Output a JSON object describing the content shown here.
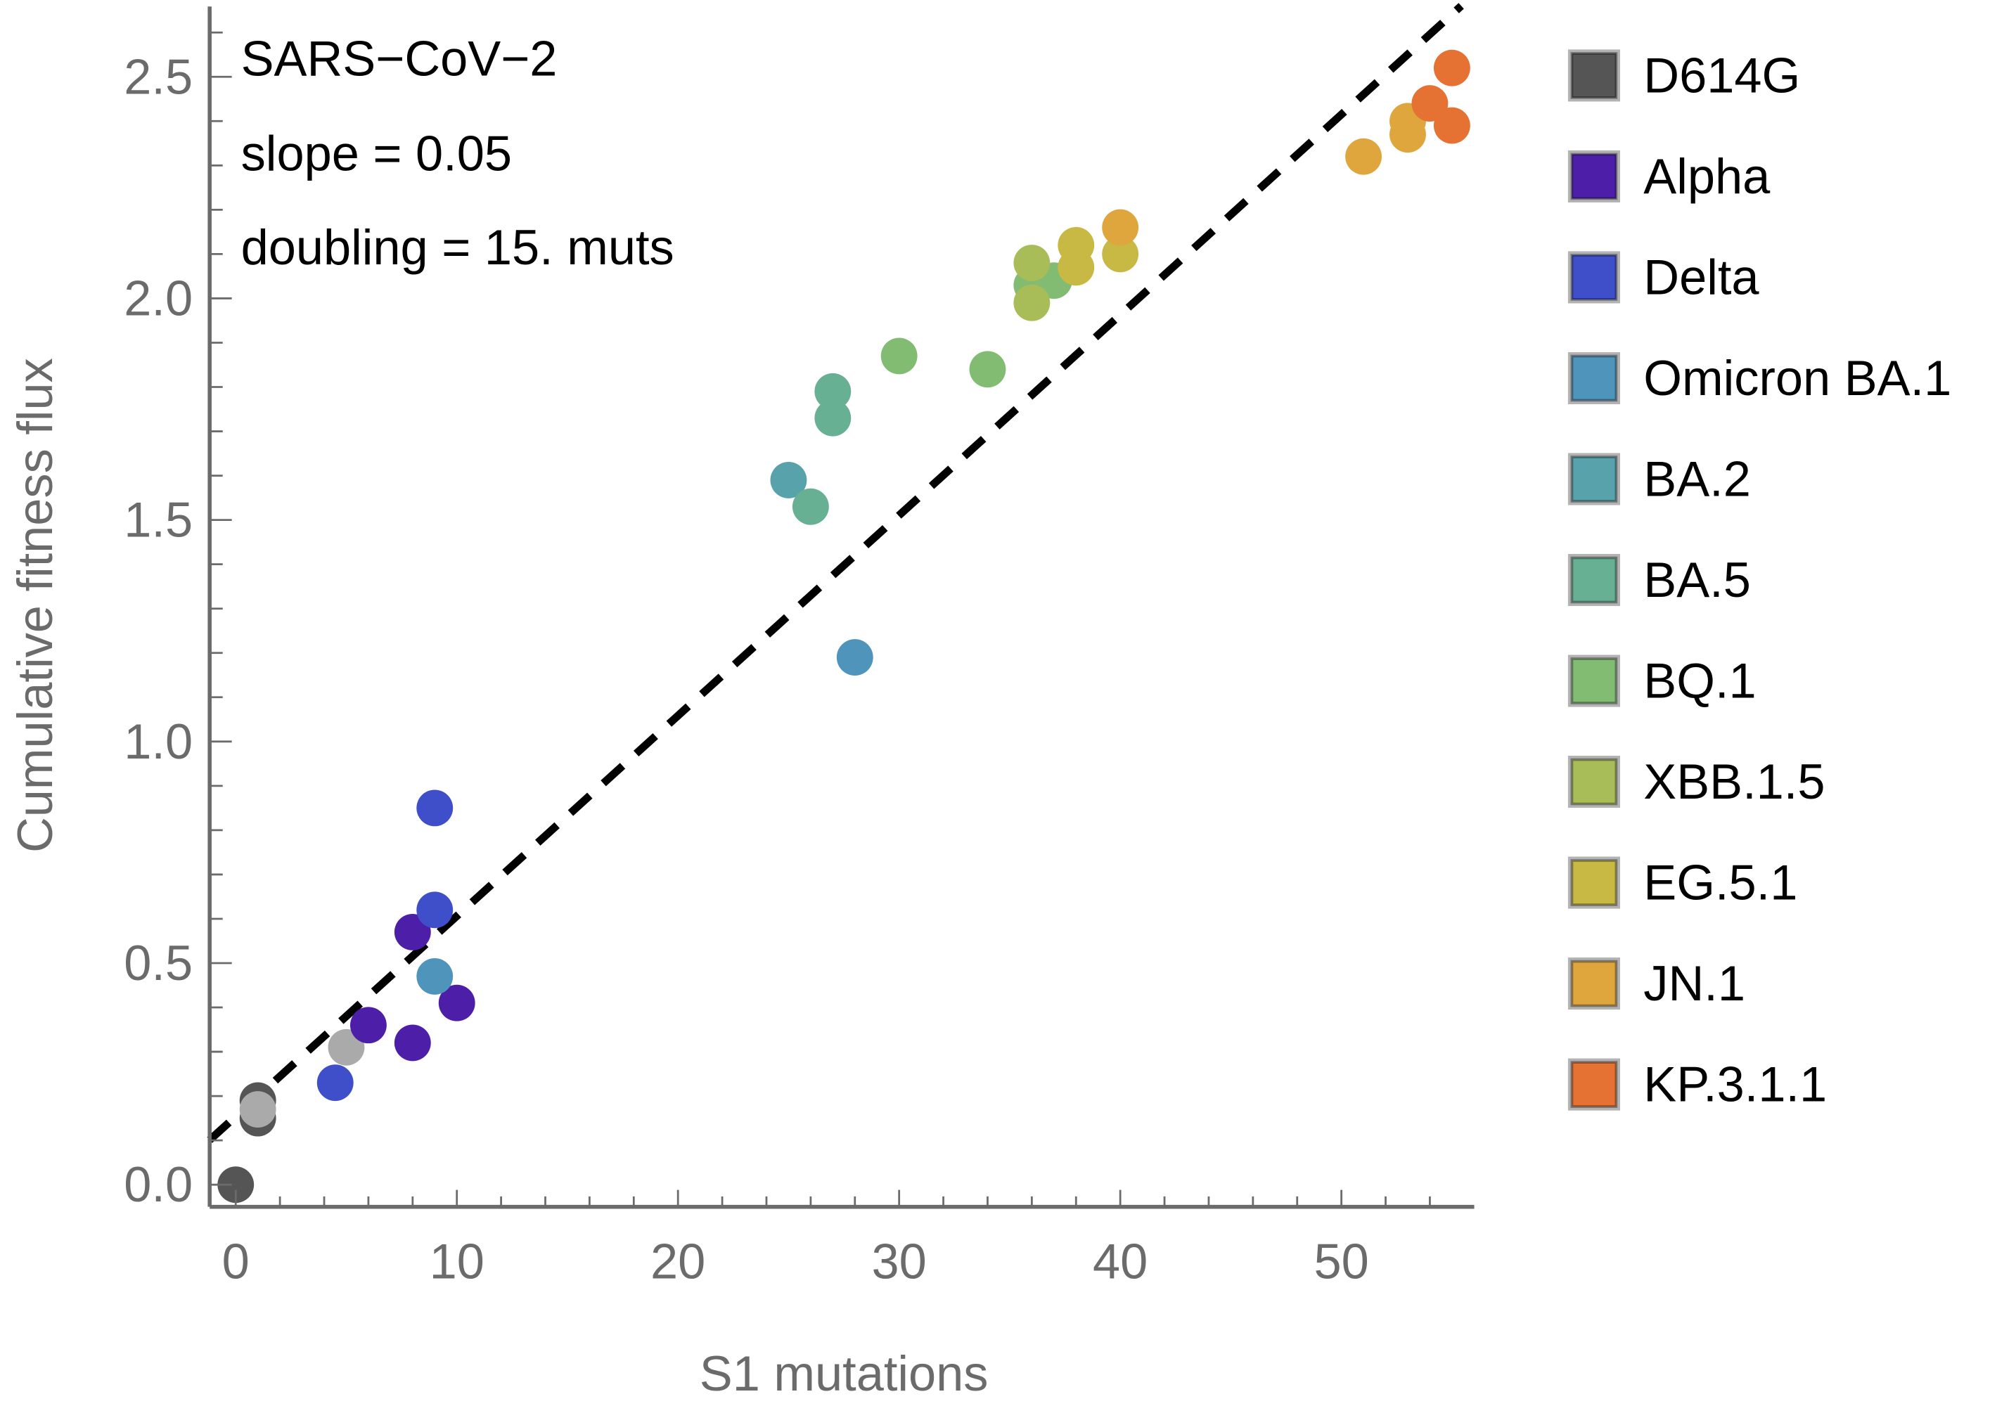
{
  "chart_data": {
    "type": "scatter",
    "title": "",
    "xlabel": "S1 mutations",
    "ylabel": "Cumulative fitness flux",
    "xlim": [
      -1.2,
      56
    ],
    "ylim": [
      -0.09,
      2.66
    ],
    "xticks": [
      0,
      10,
      20,
      30,
      40,
      50
    ],
    "xtick_labels": [
      "0",
      "10",
      "20",
      "30",
      "40",
      "50"
    ],
    "yticks": [
      0.0,
      0.5,
      1.0,
      1.5,
      2.0,
      2.5
    ],
    "ytick_labels": [
      "0.0",
      "0.5",
      "1.0",
      "1.5",
      "2.0",
      "2.5"
    ],
    "grid": false,
    "annotations": [
      "SARS−CoV−2",
      "slope = 0.05",
      "doubling = 15. muts"
    ],
    "fit_line": {
      "style": "dashed",
      "color": "#000000",
      "slope": 0.0452,
      "intercept": 0.155
    },
    "legend_position": "right",
    "series": [
      {
        "name": "D614G",
        "color": "#555555",
        "points": [
          [
            0,
            0.0
          ],
          [
            1,
            0.19
          ],
          [
            1,
            0.15
          ]
        ]
      },
      {
        "name": "D614G (light)",
        "color": "#aaaaaa",
        "legend": false,
        "points": [
          [
            1,
            0.17
          ],
          [
            5,
            0.31
          ]
        ]
      },
      {
        "name": "Alpha",
        "color": "#4d1fa8",
        "points": [
          [
            6,
            0.36
          ],
          [
            8,
            0.32
          ],
          [
            10,
            0.41
          ],
          [
            8,
            0.57
          ]
        ]
      },
      {
        "name": "Delta",
        "color": "#3e4fc9",
        "points": [
          [
            4.5,
            0.23
          ],
          [
            9,
            0.62
          ],
          [
            9,
            0.85
          ]
        ]
      },
      {
        "name": "Omicron BA.1",
        "color": "#4e94bb",
        "points": [
          [
            9,
            0.47
          ],
          [
            28,
            1.19
          ]
        ]
      },
      {
        "name": "BA.2",
        "color": "#58a2ab",
        "points": [
          [
            25,
            1.59
          ]
        ]
      },
      {
        "name": "BA.5",
        "color": "#68b093",
        "points": [
          [
            27,
            1.79
          ],
          [
            27,
            1.73
          ],
          [
            26,
            1.53
          ]
        ]
      },
      {
        "name": "BQ.1",
        "color": "#82bb72",
        "points": [
          [
            30,
            1.87
          ],
          [
            34,
            1.84
          ],
          [
            36,
            2.03
          ],
          [
            37,
            2.04
          ]
        ]
      },
      {
        "name": "XBB.1.5",
        "color": "#a8bd58",
        "points": [
          [
            36,
            2.08
          ],
          [
            36,
            1.99
          ]
        ]
      },
      {
        "name": "EG.5.1",
        "color": "#c7b944",
        "points": [
          [
            38,
            2.12
          ],
          [
            38,
            2.07
          ],
          [
            40,
            2.1
          ]
        ]
      },
      {
        "name": "JN.1",
        "color": "#e0a63e",
        "points": [
          [
            40,
            2.16
          ],
          [
            51,
            2.32
          ],
          [
            53,
            2.37
          ],
          [
            53,
            2.4
          ]
        ]
      },
      {
        "name": "KP.3.1.1",
        "color": "#e57233",
        "points": [
          [
            54,
            2.44
          ],
          [
            55,
            2.52
          ],
          [
            55,
            2.39
          ]
        ]
      }
    ]
  }
}
